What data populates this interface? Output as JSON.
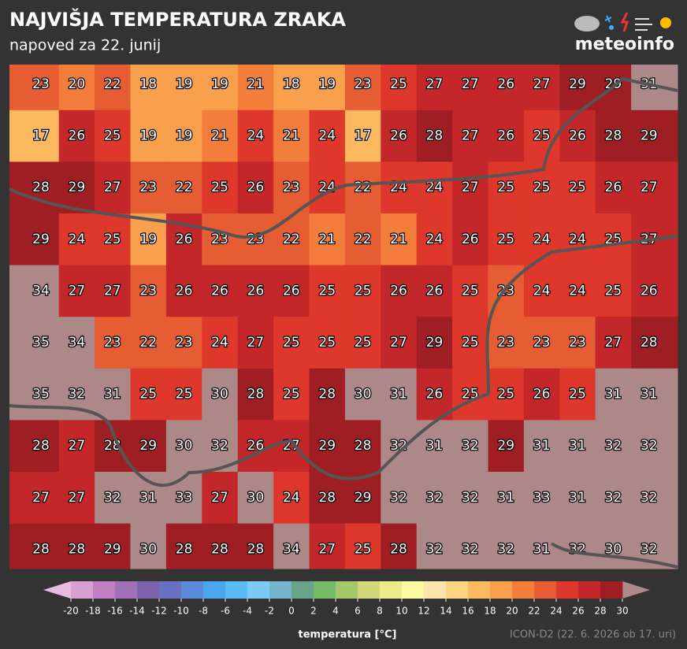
{
  "header": {
    "title": "NAJVIŠJA TEMPERATURA ZRAKA",
    "subtitle": "napoved za 22. junij",
    "logo": "meteoinfo"
  },
  "map": {
    "values": [
      [
        23,
        20,
        22,
        18,
        19,
        19,
        21,
        18,
        19,
        23,
        25,
        27,
        27,
        26,
        27,
        29,
        29,
        31
      ],
      [
        17,
        26,
        25,
        19,
        19,
        21,
        24,
        21,
        24,
        17,
        26,
        28,
        27,
        26,
        25,
        26,
        28,
        29
      ],
      [
        28,
        29,
        27,
        23,
        22,
        25,
        26,
        23,
        24,
        22,
        24,
        24,
        27,
        25,
        25,
        25,
        26,
        27
      ],
      [
        29,
        24,
        25,
        19,
        26,
        23,
        23,
        22,
        21,
        22,
        21,
        24,
        26,
        25,
        24,
        24,
        25,
        27
      ],
      [
        34,
        27,
        27,
        23,
        26,
        26,
        26,
        26,
        25,
        25,
        26,
        26,
        25,
        23,
        24,
        24,
        25,
        26
      ],
      [
        35,
        34,
        23,
        22,
        23,
        24,
        27,
        25,
        25,
        25,
        27,
        29,
        25,
        23,
        23,
        23,
        27,
        28
      ],
      [
        35,
        32,
        31,
        25,
        25,
        30,
        28,
        25,
        28,
        30,
        31,
        26,
        25,
        25,
        26,
        25,
        31,
        31
      ],
      [
        28,
        27,
        28,
        29,
        30,
        32,
        26,
        27,
        29,
        28,
        32,
        31,
        32,
        29,
        31,
        31,
        32,
        32
      ],
      [
        27,
        27,
        32,
        31,
        33,
        27,
        30,
        24,
        28,
        29,
        32,
        32,
        32,
        31,
        33,
        31,
        32,
        32
      ],
      [
        28,
        28,
        29,
        30,
        28,
        28,
        28,
        34,
        27,
        25,
        28,
        32,
        32,
        32,
        31,
        32,
        30,
        32
      ]
    ]
  },
  "legend": {
    "label": "temperatura [°C]",
    "ticks": [
      -20,
      -18,
      -16,
      -14,
      -12,
      -10,
      -8,
      -6,
      -4,
      -2,
      0,
      2,
      4,
      6,
      8,
      10,
      12,
      14,
      16,
      18,
      20,
      22,
      24,
      26,
      28,
      30
    ],
    "colors": [
      "#d8a0d0",
      "#c07fc0",
      "#a070b8",
      "#7d62b0",
      "#6a70c0",
      "#5a8ad8",
      "#4aa6f0",
      "#5bbcf5",
      "#7ccaf5",
      "#74b4cc",
      "#6aa38a",
      "#76bc68",
      "#a4c86a",
      "#d2d879",
      "#eceb87",
      "#fbf9a2",
      "#fde5b0",
      "#fdd582",
      "#fcb85e",
      "#f9a04e",
      "#f37d3a",
      "#e65c33",
      "#de372b",
      "#c4272a",
      "#9e1e24"
    ],
    "under_color": "#e6bde0",
    "over_color": "#ad8888"
  },
  "footer": {
    "source": "ICON-D2 (22. 6. 2026 ob 17. uri)"
  }
}
